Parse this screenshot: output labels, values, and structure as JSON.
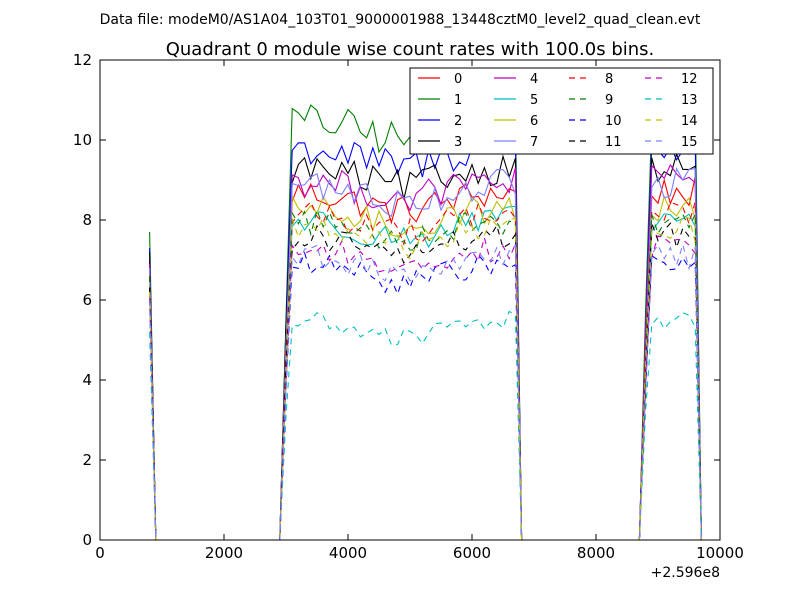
{
  "chart_data": {
    "type": "line",
    "suptitle": "Data file: modeM0/AS1A04_103T01_9000001988_13448cztM0_level2_quad_clean.evt",
    "title": "Quadrant 0 module wise count rates with 100.0s bins.",
    "xlabel": "",
    "ylabel": "",
    "x_offset_label": "+2.596e8",
    "xlim": [
      0,
      10000
    ],
    "ylim": [
      0,
      12
    ],
    "xticks": [
      0,
      2000,
      4000,
      6000,
      8000,
      10000
    ],
    "xtick_labels": [
      "0",
      "2000",
      "4000",
      "6000",
      "8000",
      "10000"
    ],
    "yticks": [
      0,
      2,
      4,
      6,
      8,
      10,
      12
    ],
    "ytick_labels": [
      "0",
      "2",
      "4",
      "6",
      "8",
      "10",
      "12"
    ],
    "grid": false,
    "legend_position": "top-right",
    "legend_columns": 4,
    "x_bin_step": 100,
    "segments": [
      {
        "kind": "spike",
        "x_start": 800,
        "x_end": 900
      },
      {
        "kind": "zero",
        "x_start": 900,
        "x_end": 2900
      },
      {
        "kind": "block",
        "x_start": 2900,
        "x_end": 6800
      },
      {
        "kind": "zero",
        "x_start": 6800,
        "x_end": 8700
      },
      {
        "kind": "block",
        "x_start": 8700,
        "x_end": 9700
      }
    ],
    "series": [
      {
        "name": "0",
        "color": "#ff0000",
        "dash": "solid",
        "level": 8.7,
        "spike": 7.0
      },
      {
        "name": "1",
        "color": "#008000",
        "dash": "solid",
        "level": 10.5,
        "spike": 7.7
      },
      {
        "name": "2",
        "color": "#0000ff",
        "dash": "solid",
        "level": 9.8,
        "spike": 7.3
      },
      {
        "name": "3",
        "color": "#000000",
        "dash": "solid",
        "level": 9.3,
        "spike": 7.2
      },
      {
        "name": "4",
        "color": "#bf00bf",
        "dash": "solid",
        "level": 9.0,
        "spike": 6.9
      },
      {
        "name": "5",
        "color": "#00bfbf",
        "dash": "solid",
        "level": 8.0,
        "spike": 6.4
      },
      {
        "name": "6",
        "color": "#bfbf00",
        "dash": "solid",
        "level": 8.3,
        "spike": 6.5
      },
      {
        "name": "7",
        "color": "#7f7fff",
        "dash": "solid",
        "level": 8.9,
        "spike": 6.8
      },
      {
        "name": "8",
        "color": "#ff0000",
        "dash": "dashed",
        "level": 8.2,
        "spike": 6.6
      },
      {
        "name": "9",
        "color": "#008000",
        "dash": "dashed",
        "level": 8.0,
        "spike": 6.6
      },
      {
        "name": "10",
        "color": "#0000ff",
        "dash": "dashed",
        "level": 6.9,
        "spike": 6.0
      },
      {
        "name": "11",
        "color": "#000000",
        "dash": "dashed",
        "level": 7.6,
        "spike": 6.3
      },
      {
        "name": "12",
        "color": "#bf00bf",
        "dash": "dashed",
        "level": 7.3,
        "spike": 6.1
      },
      {
        "name": "13",
        "color": "#00bfbf",
        "dash": "dashed",
        "level": 5.5,
        "spike": 5.2
      },
      {
        "name": "14",
        "color": "#bfbf00",
        "dash": "dashed",
        "level": 7.8,
        "spike": 6.2
      },
      {
        "name": "15",
        "color": "#7f7fff",
        "dash": "dashed",
        "level": 7.1,
        "spike": 6.0
      }
    ]
  }
}
